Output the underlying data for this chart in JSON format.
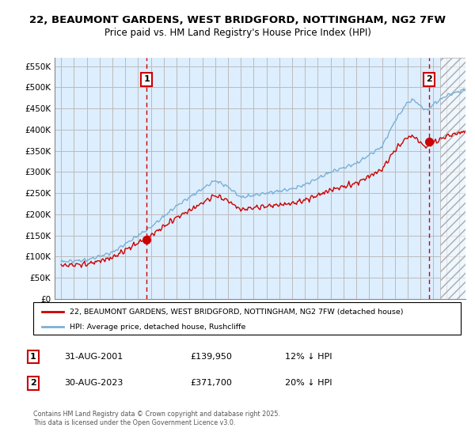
{
  "title_line1": "22, BEAUMONT GARDENS, WEST BRIDGFORD, NOTTINGHAM, NG2 7FW",
  "title_line2": "Price paid vs. HM Land Registry's House Price Index (HPI)",
  "ylabel_ticks": [
    "£0",
    "£50K",
    "£100K",
    "£150K",
    "£200K",
    "£250K",
    "£300K",
    "£350K",
    "£400K",
    "£450K",
    "£500K",
    "£550K"
  ],
  "ytick_values": [
    0,
    50000,
    100000,
    150000,
    200000,
    250000,
    300000,
    350000,
    400000,
    450000,
    500000,
    550000
  ],
  "ylim": [
    0,
    570000
  ],
  "xlim_start": 1994.5,
  "xlim_end": 2026.5,
  "sale1_x": 2001.667,
  "sale1_y": 139950,
  "sale2_x": 2023.667,
  "sale2_y": 371700,
  "legend_line1": "22, BEAUMONT GARDENS, WEST BRIDGFORD, NOTTINGHAM, NG2 7FW (detached house)",
  "legend_line2": "HPI: Average price, detached house, Rushcliffe",
  "annotation1_date": "31-AUG-2001",
  "annotation1_price": "£139,950",
  "annotation1_hpi": "12% ↓ HPI",
  "annotation2_date": "30-AUG-2023",
  "annotation2_price": "£371,700",
  "annotation2_hpi": "20% ↓ HPI",
  "footer": "Contains HM Land Registry data © Crown copyright and database right 2025.\nThis data is licensed under the Open Government Licence v3.0.",
  "line_red_color": "#cc0000",
  "line_blue_color": "#7ab0d4",
  "grid_color": "#bbbbbb",
  "bg_color": "#ffffff",
  "chart_bg_color": "#ddeeff",
  "box_color": "#cc0000",
  "future_start": 2024.5
}
